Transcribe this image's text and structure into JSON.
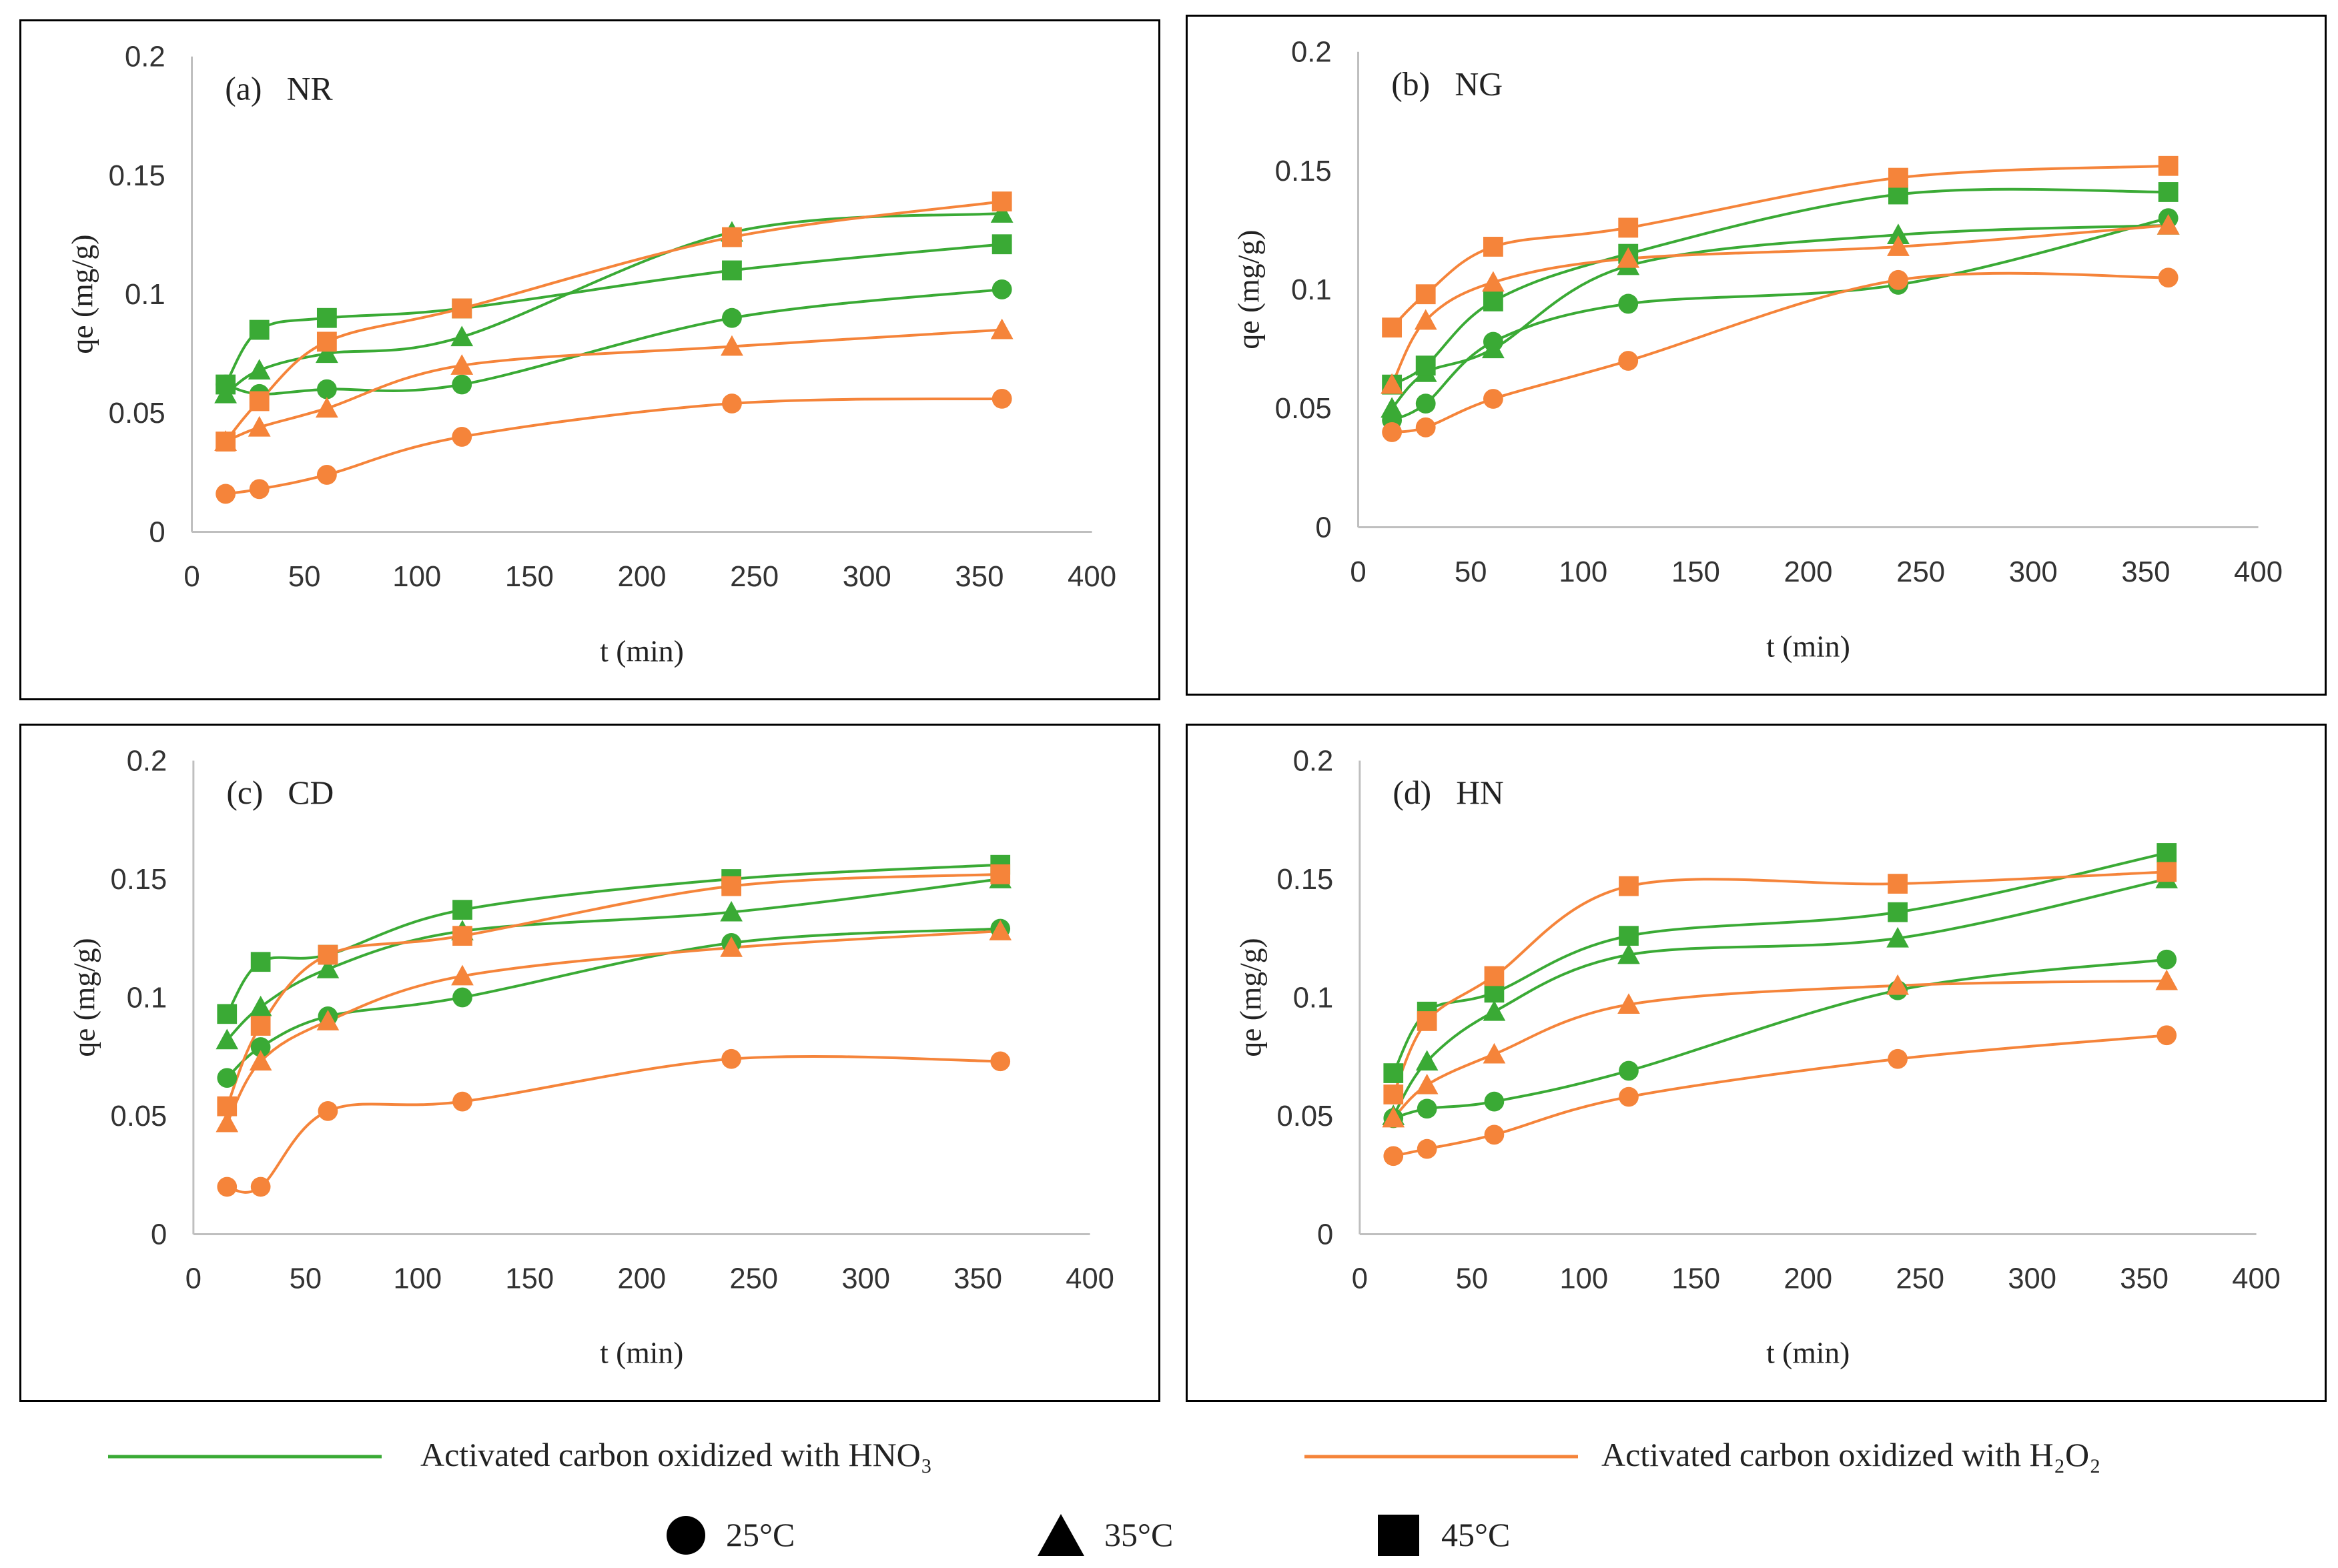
{
  "legend": {
    "line_hno3": {
      "label": "Activated carbon oxidized with HNO₃",
      "color": "#3aaa35"
    },
    "line_h2o2": {
      "label": "Activated carbon oxidized with H₂O₂",
      "color": "#f5843a"
    },
    "markers": [
      {
        "shape": "circle",
        "label": "25°C"
      },
      {
        "shape": "triangle",
        "label": "35°C"
      },
      {
        "shape": "square",
        "label": "45°C"
      }
    ]
  },
  "chart_data": [
    {
      "type": "line",
      "title": "(a)   NR",
      "xlabel": "t (min)",
      "ylabel": "qe (mg/g)",
      "xlim": [
        0,
        400
      ],
      "ylim": [
        0,
        0.2
      ],
      "xticks": [
        "0",
        "50",
        "100",
        "150",
        "200",
        "250",
        "300",
        "350",
        "400"
      ],
      "yticks": [
        "0",
        "0.05",
        "0.1",
        "0.15",
        "0.2"
      ],
      "x": [
        15,
        30,
        60,
        120,
        240,
        360
      ],
      "series": [
        {
          "name": "HNO3 25°C",
          "material": "HNO3",
          "marker": "circle",
          "values": [
            0.062,
            0.058,
            0.06,
            0.062,
            0.09,
            0.102
          ]
        },
        {
          "name": "HNO3 35°C",
          "material": "HNO3",
          "marker": "triangle",
          "values": [
            0.058,
            0.068,
            0.075,
            0.082,
            0.126,
            0.134
          ]
        },
        {
          "name": "HNO3 45°C",
          "material": "HNO3",
          "marker": "square",
          "values": [
            0.062,
            0.085,
            0.09,
            0.094,
            0.11,
            0.121
          ]
        },
        {
          "name": "H2O2 25°C",
          "material": "H2O2",
          "marker": "circle",
          "values": [
            0.016,
            0.018,
            0.024,
            0.04,
            0.054,
            0.056
          ]
        },
        {
          "name": "H2O2 35°C",
          "material": "H2O2",
          "marker": "triangle",
          "values": [
            0.038,
            0.044,
            0.052,
            0.07,
            0.078,
            0.085
          ]
        },
        {
          "name": "H2O2 45°C",
          "material": "H2O2",
          "marker": "square",
          "values": [
            0.038,
            0.055,
            0.08,
            0.094,
            0.124,
            0.139
          ]
        }
      ]
    },
    {
      "type": "line",
      "title": "(b)   NG",
      "xlabel": "t (min)",
      "ylabel": "qe (mg/g)",
      "xlim": [
        0,
        400
      ],
      "ylim": [
        0,
        0.2
      ],
      "xticks": [
        "0",
        "50",
        "100",
        "150",
        "200",
        "250",
        "300",
        "350",
        "400"
      ],
      "yticks": [
        "0",
        "0.05",
        "0.1",
        "0.15",
        "0.2"
      ],
      "x": [
        15,
        30,
        60,
        120,
        240,
        360
      ],
      "series": [
        {
          "name": "HNO3 25°C",
          "material": "HNO3",
          "marker": "circle",
          "values": [
            0.045,
            0.052,
            0.078,
            0.094,
            0.102,
            0.13
          ]
        },
        {
          "name": "HNO3 35°C",
          "material": "HNO3",
          "marker": "triangle",
          "values": [
            0.05,
            0.065,
            0.075,
            0.11,
            0.123,
            0.127
          ]
        },
        {
          "name": "HNO3 45°C",
          "material": "HNO3",
          "marker": "square",
          "values": [
            0.06,
            0.068,
            0.095,
            0.115,
            0.14,
            0.141
          ]
        },
        {
          "name": "H2O2 25°C",
          "material": "H2O2",
          "marker": "circle",
          "values": [
            0.04,
            0.042,
            0.054,
            0.07,
            0.104,
            0.105
          ]
        },
        {
          "name": "H2O2 35°C",
          "material": "H2O2",
          "marker": "triangle",
          "values": [
            0.06,
            0.087,
            0.103,
            0.113,
            0.118,
            0.127
          ]
        },
        {
          "name": "H2O2 45°C",
          "material": "H2O2",
          "marker": "square",
          "values": [
            0.084,
            0.098,
            0.118,
            0.126,
            0.147,
            0.152
          ]
        }
      ]
    },
    {
      "type": "line",
      "title": "(c)   CD",
      "xlabel": "t (min)",
      "ylabel": "qe (mg/g)",
      "xlim": [
        0,
        400
      ],
      "ylim": [
        0,
        0.2
      ],
      "xticks": [
        "0",
        "50",
        "100",
        "150",
        "200",
        "250",
        "300",
        "350",
        "400"
      ],
      "yticks": [
        "0",
        "0.05",
        "0.1",
        "0.15",
        "0.2"
      ],
      "x": [
        15,
        30,
        60,
        120,
        240,
        360
      ],
      "series": [
        {
          "name": "HNO3 25°C",
          "material": "HNO3",
          "marker": "circle",
          "values": [
            0.066,
            0.079,
            0.092,
            0.1,
            0.123,
            0.129
          ]
        },
        {
          "name": "HNO3 35°C",
          "material": "HNO3",
          "marker": "triangle",
          "values": [
            0.082,
            0.096,
            0.112,
            0.128,
            0.136,
            0.15
          ]
        },
        {
          "name": "HNO3 45°C",
          "material": "HNO3",
          "marker": "square",
          "values": [
            0.093,
            0.115,
            0.118,
            0.137,
            0.15,
            0.156
          ]
        },
        {
          "name": "H2O2 25°C",
          "material": "H2O2",
          "marker": "circle",
          "values": [
            0.02,
            0.02,
            0.052,
            0.056,
            0.074,
            0.073
          ]
        },
        {
          "name": "H2O2 35°C",
          "material": "H2O2",
          "marker": "triangle",
          "values": [
            0.047,
            0.073,
            0.09,
            0.109,
            0.121,
            0.128
          ]
        },
        {
          "name": "H2O2 45°C",
          "material": "H2O2",
          "marker": "square",
          "values": [
            0.054,
            0.088,
            0.118,
            0.126,
            0.147,
            0.152
          ]
        }
      ]
    },
    {
      "type": "line",
      "title": "(d)   HN",
      "xlabel": "t (min)",
      "ylabel": "qe (mg/g)",
      "xlim": [
        0,
        400
      ],
      "ylim": [
        0,
        0.2
      ],
      "xticks": [
        "0",
        "50",
        "100",
        "150",
        "200",
        "250",
        "300",
        "350",
        "400"
      ],
      "yticks": [
        "0",
        "0.05",
        "0.1",
        "0.15",
        "0.2"
      ],
      "x": [
        15,
        30,
        60,
        120,
        240,
        360
      ],
      "series": [
        {
          "name": "HNO3 25°C",
          "material": "HNO3",
          "marker": "circle",
          "values": [
            0.049,
            0.053,
            0.056,
            0.069,
            0.103,
            0.116
          ]
        },
        {
          "name": "HNO3 35°C",
          "material": "HNO3",
          "marker": "triangle",
          "values": [
            0.05,
            0.073,
            0.094,
            0.118,
            0.125,
            0.15
          ]
        },
        {
          "name": "HNO3 45°C",
          "material": "HNO3",
          "marker": "square",
          "values": [
            0.068,
            0.094,
            0.102,
            0.126,
            0.136,
            0.161
          ]
        },
        {
          "name": "H2O2 25°C",
          "material": "H2O2",
          "marker": "circle",
          "values": [
            0.033,
            0.036,
            0.042,
            0.058,
            0.074,
            0.084
          ]
        },
        {
          "name": "H2O2 35°C",
          "material": "H2O2",
          "marker": "triangle",
          "values": [
            0.049,
            0.063,
            0.076,
            0.097,
            0.105,
            0.107
          ]
        },
        {
          "name": "H2O2 45°C",
          "material": "H2O2",
          "marker": "square",
          "values": [
            0.059,
            0.09,
            0.109,
            0.147,
            0.148,
            0.153
          ]
        }
      ]
    }
  ]
}
